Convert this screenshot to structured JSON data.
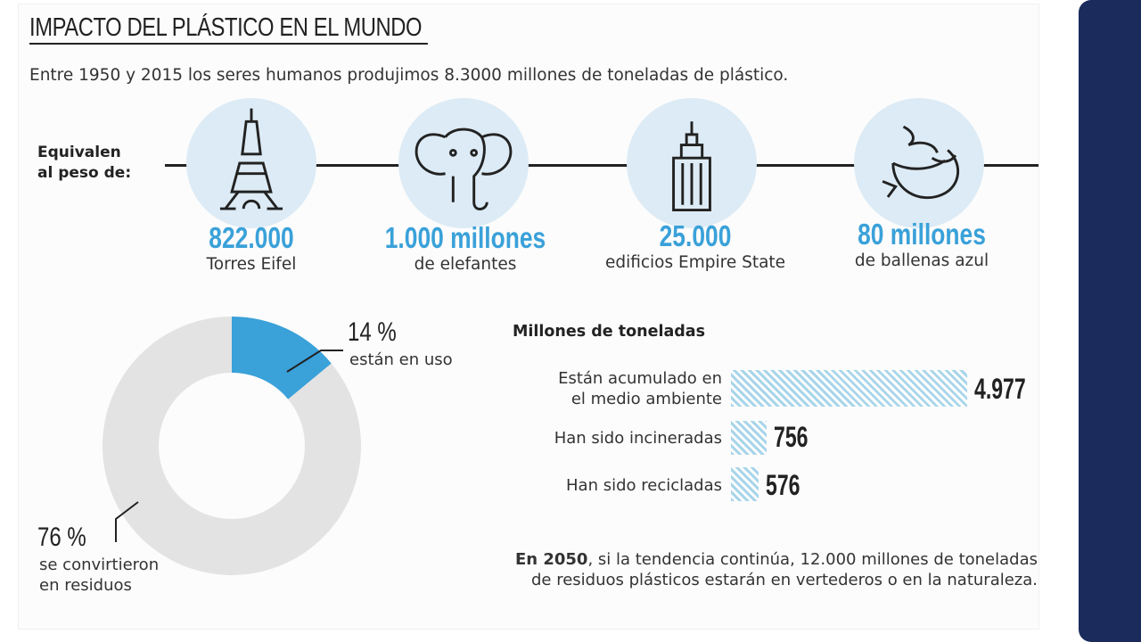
{
  "title": "IMPACTO DEL PLÁSTICO EN EL MUNDO",
  "subtitle": "Entre 1950 y 2015 los seres humanos produjimos 8.3000 millones de toneladas de plástico.",
  "equivalent_label": [
    "Equivalen",
    "al peso de:"
  ],
  "equivalents": [
    {
      "icon": "eiffel-tower-icon",
      "value": "822.000",
      "label": "Torres Eifel"
    },
    {
      "icon": "elephant-icon",
      "value": "1.000 millones",
      "label": "de elefantes"
    },
    {
      "icon": "empire-state-icon",
      "value": "25.000",
      "label": "edificios Empire State"
    },
    {
      "icon": "whale-icon",
      "value": "80 millones",
      "label": "de ballenas azul"
    }
  ],
  "colors": {
    "accent": "#3aa1d9",
    "donut_gray": "#e3e3e3",
    "panel": "#1a2b5c"
  },
  "chart_data": [
    {
      "type": "pie",
      "subtype": "donut",
      "slices": [
        {
          "value": 14,
          "label": "14 %",
          "caption": "están en uso",
          "color": "#3aa1d9"
        },
        {
          "value": 86,
          "color": "#e3e3e3"
        }
      ],
      "annotations": [
        {
          "label": "76 %",
          "caption": [
            "se convirtieron",
            "en residuos"
          ]
        }
      ]
    },
    {
      "type": "bar",
      "orientation": "horizontal",
      "title": "Millones de toneladas",
      "categories": [
        [
          "Están acumulado en",
          "el medio ambiente"
        ],
        [
          "Han sido incineradas"
        ],
        [
          "Han sido recicladas"
        ]
      ],
      "values": [
        4977,
        756,
        576
      ],
      "value_labels": [
        "4.977",
        "756",
        "576"
      ]
    }
  ],
  "footer": {
    "bold": "En 2050",
    "line1": ", si la tendencia continúa, 12.000 millones de toneladas",
    "line2": "de residuos plásticos estarán en vertederos o en la naturaleza."
  }
}
